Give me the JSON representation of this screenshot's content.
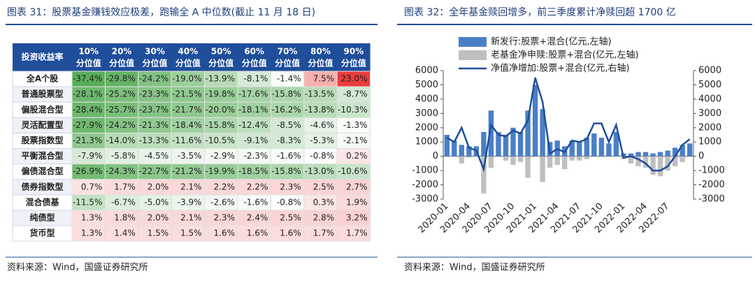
{
  "table_panel": {
    "title": "图表 31：股票基金赚钱效应极差，跑输全 A 中位数(截止 11 月 18 日)",
    "table": {
      "header": [
        "投资收益率",
        [
          "10%",
          "分位值"
        ],
        [
          "20%",
          "分位值"
        ],
        [
          "30%",
          "分位值"
        ],
        [
          "40%",
          "分位值"
        ],
        [
          "50%",
          "分位值"
        ],
        [
          "60%",
          "分位值"
        ],
        [
          "70%",
          "分位值"
        ],
        [
          "80%",
          "分位值"
        ],
        [
          "90%",
          "分位值"
        ]
      ],
      "rows": [
        [
          "全A个股",
          "-37.4%",
          "-29.8%",
          "-24.2%",
          "-19.0%",
          "-13.9%",
          "-8.1%",
          "-1.4%",
          "7.5%",
          "23.0%"
        ],
        [
          "普通股票型",
          "-28.1%",
          "-25.2%",
          "-23.3%",
          "-21.5%",
          "-19.8%",
          "-17.6%",
          "-15.8%",
          "-13.5%",
          "-8.7%"
        ],
        [
          "偏股混合型",
          "-28.4%",
          "-25.7%",
          "-23.7%",
          "-21.7%",
          "-20.0%",
          "-18.1%",
          "-16.2%",
          "-13.8%",
          "-10.3%"
        ],
        [
          "灵活配置型",
          "-27.9%",
          "-24.2%",
          "-21.3%",
          "-18.4%",
          "-15.8%",
          "-12.4%",
          "-8.5%",
          "-4.6%",
          "-1.3%"
        ],
        [
          "股票指数型",
          "-21.3%",
          "-14.0%",
          "-13.3%",
          "-11.6%",
          "-10.5%",
          "-9.1%",
          "-8.3%",
          "-5.3%",
          "-2.1%"
        ],
        [
          "平衡混合型",
          "-7.9%",
          "-5.8%",
          "-4.5%",
          "-3.5%",
          "-2.9%",
          "-2.3%",
          "-1.6%",
          "-0.8%",
          "0.2%"
        ],
        [
          "偏债混合型",
          "-26.9%",
          "-24.3%",
          "-22.7%",
          "-21.2%",
          "-19.9%",
          "-18.5%",
          "-15.8%",
          "-13.0%",
          "-10.6%"
        ],
        [
          "债券指数型",
          "0.7%",
          "1.7%",
          "2.0%",
          "2.1%",
          "2.2%",
          "2.2%",
          "2.3%",
          "2.5%",
          "2.7%"
        ],
        [
          "混合债基",
          "-11.5%",
          "-6.7%",
          "-5.0%",
          "-3.9%",
          "-2.6%",
          "-1.6%",
          "-0.8%",
          "0.3%",
          "1.9%"
        ],
        [
          "纯债型",
          "1.3%",
          "1.8%",
          "2.0%",
          "2.1%",
          "2.3%",
          "2.4%",
          "2.5%",
          "2.8%",
          "3.2%"
        ],
        [
          "货币型",
          "1.3%",
          "1.4%",
          "1.5%",
          "1.5%",
          "1.6%",
          "1.6%",
          "1.6%",
          "1.7%",
          "1.7%"
        ]
      ]
    },
    "source": "资料来源：Wind，国盛证券研究所"
  },
  "chart_title": "图表 32：全年基金赎回增多，前三季度累计净赎回超 1700 亿",
  "chart_source": "资料来源：Wind，国盛证券研究所",
  "chart_data": {
    "type": "bar-line",
    "categories": [
      "2020-01",
      null,
      null,
      "2020-04",
      null,
      null,
      "2020-07",
      null,
      null,
      "2020-10",
      null,
      null,
      "2021-01",
      null,
      null,
      "2021-04",
      null,
      null,
      "2021-07",
      null,
      null,
      "2021-10",
      null,
      null,
      "2022-01",
      null,
      null,
      "2022-04",
      null,
      null,
      "2022-07",
      null,
      null,
      null
    ],
    "series": [
      {
        "name": "新发行:股票+混合(亿元,左轴)",
        "type": "bar",
        "color": "#4a7fc8",
        "values": [
          1500,
          1100,
          800,
          700,
          700,
          1700,
          3200,
          1700,
          1500,
          2000,
          1700,
          3200,
          5000,
          3300,
          1000,
          1100,
          700,
          1100,
          1000,
          1300,
          1600,
          1300,
          900,
          1700,
          200,
          200,
          300,
          300,
          200,
          300,
          400,
          600,
          800,
          900
        ]
      },
      {
        "name": "老基金净申赎:股票+混合(亿元,左轴)",
        "type": "bar",
        "color": "#bfbfbf",
        "values": [
          900,
          600,
          -500,
          -100,
          200,
          -2600,
          -800,
          0,
          -300,
          -600,
          -400,
          -1500,
          1300,
          -1800,
          -800,
          -600,
          -900,
          -300,
          -300,
          -200,
          500,
          900,
          200,
          800,
          -200,
          -500,
          -700,
          -800,
          -1300,
          -1400,
          -1000,
          -700,
          -400,
          300
        ]
      },
      {
        "name": "净值净增加:股票+混合(亿元,右轴)",
        "type": "line",
        "axis": "y2",
        "color": "#1f4e9a",
        "values": [
          1300,
          1000,
          2000,
          600,
          400,
          -900,
          2200,
          1500,
          1400,
          1800,
          1600,
          2500,
          5500,
          3800,
          200,
          500,
          300,
          1100,
          1000,
          1200,
          2300,
          2300,
          1000,
          2200,
          -100,
          0,
          -200,
          -500,
          -1000,
          -1000,
          -700,
          0,
          800,
          1200
        ]
      }
    ],
    "ylim": [
      -3000,
      6000
    ],
    "yticks": [
      -3000,
      -2000,
      -1000,
      0,
      1000,
      2000,
      3000,
      4000,
      5000,
      6000
    ],
    "y2lim": [
      -3000,
      6000
    ],
    "y2ticks": [
      -3000,
      -2000,
      -1000,
      0,
      1000,
      2000,
      3000,
      4000,
      5000,
      6000
    ]
  }
}
